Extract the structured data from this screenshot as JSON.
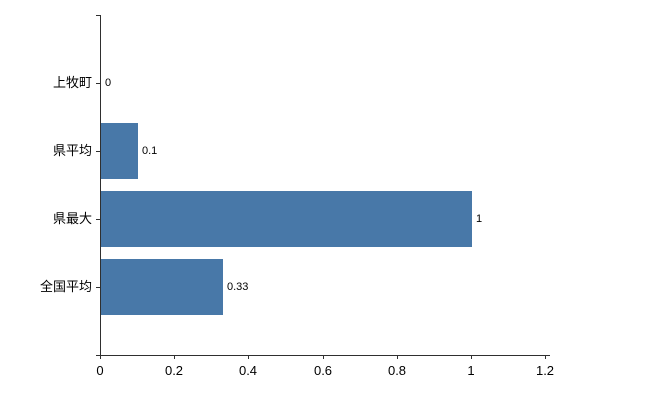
{
  "chart_data": {
    "type": "bar",
    "orientation": "horizontal",
    "title": "",
    "xlabel": "",
    "ylabel": "",
    "categories": [
      "上牧町",
      "県平均",
      "県最大",
      "全国平均"
    ],
    "values": [
      0,
      0.1,
      1,
      0.33
    ],
    "value_labels": [
      "0",
      "0.1",
      "1",
      "0.33"
    ],
    "xlim": [
      0,
      1.2
    ],
    "x_ticks": [
      0,
      0.2,
      0.4,
      0.6,
      0.8,
      1,
      1.2
    ],
    "x_tick_labels": [
      "0",
      "0.2",
      "0.4",
      "0.6",
      "0.8",
      "1",
      "1.2"
    ],
    "bar_color": "#4878a8",
    "axis_color": "#2f2f2f",
    "background_color": "#ffffff",
    "grid": false,
    "legend": false
  }
}
